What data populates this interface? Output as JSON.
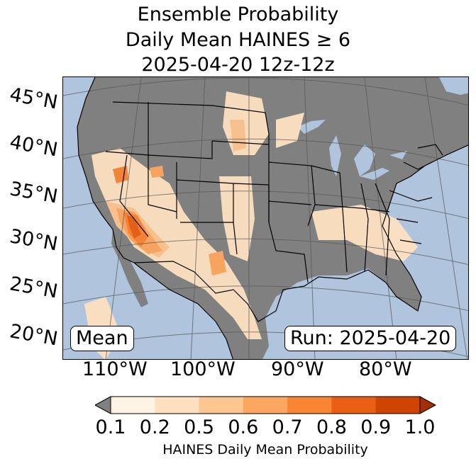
{
  "title": {
    "line1": "Ensemble Probability",
    "line2": "Daily Mean HAINES ≥ 6",
    "line3": "2025-04-20 12z-12z"
  },
  "map": {
    "lat_labels": [
      "45°N",
      "40°N",
      "35°N",
      "30°N",
      "25°N",
      "20°N"
    ],
    "lon_labels": [
      "110°W",
      "100°W",
      "90°W",
      "80°W"
    ],
    "badge_left": "Mean",
    "badge_right": "Run: 2025-04-20",
    "colors": {
      "ocean": "#b0c4de",
      "below_threshold": "#808080",
      "boundaries": "#000000"
    }
  },
  "colorbar": {
    "ticks": [
      "0.1",
      "0.2",
      "0.5",
      "0.6",
      "0.7",
      "0.8",
      "0.9",
      "1.0"
    ],
    "colors": [
      "#fff3e6",
      "#fee0c1",
      "#fdc590",
      "#fda65f",
      "#f98434",
      "#e95f13",
      "#ce4401"
    ],
    "under_color": "#808080",
    "over_color": "#a33003",
    "label": "HAINES Daily Mean Probability"
  }
}
